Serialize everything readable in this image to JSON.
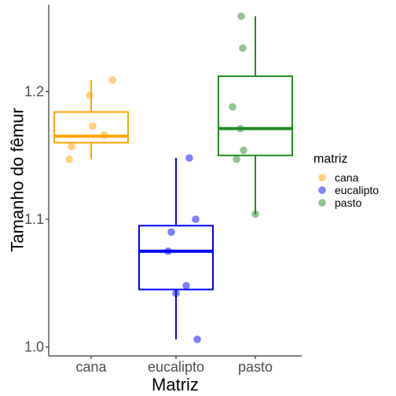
{
  "chart_data": {
    "type": "boxplot",
    "xlabel": "Matriz",
    "ylabel": "Tamanho do fêmur",
    "ylim": [
      0.993,
      1.268
    ],
    "y_ticks": [
      1.0,
      1.1,
      1.2
    ],
    "y_tick_labels": [
      "1.0",
      "1.1",
      "1.2"
    ],
    "categories": [
      "cana",
      "eucalipto",
      "pasto"
    ],
    "grid": false,
    "legend": {
      "title": "matriz",
      "placement": "right",
      "entries": [
        "cana",
        "eucalipto",
        "pasto"
      ]
    },
    "series": [
      {
        "name": "cana",
        "color": "#FFA500",
        "box": {
          "min": 1.147,
          "q1": 1.16,
          "median": 1.165,
          "q3": 1.184,
          "max": 1.209
        },
        "points": [
          {
            "x": -0.28,
            "y": 1.147
          },
          {
            "x": -0.25,
            "y": 1.157
          },
          {
            "x": -0.02,
            "y": 1.197
          },
          {
            "x": 0.02,
            "y": 1.173
          },
          {
            "x": 0.17,
            "y": 1.166
          },
          {
            "x": 0.27,
            "y": 1.209
          }
        ]
      },
      {
        "name": "eucalipto",
        "color": "#0000FF",
        "box": {
          "min": 1.006,
          "q1": 1.045,
          "median": 1.075,
          "q3": 1.095,
          "max": 1.148
        },
        "points": [
          {
            "x": -0.1,
            "y": 1.075
          },
          {
            "x": -0.06,
            "y": 1.09
          },
          {
            "x": 0.0,
            "y": 1.042
          },
          {
            "x": 0.13,
            "y": 1.048
          },
          {
            "x": 0.17,
            "y": 1.148
          },
          {
            "x": 0.25,
            "y": 1.1
          },
          {
            "x": 0.27,
            "y": 1.006
          }
        ]
      },
      {
        "name": "pasto",
        "color": "#228B22",
        "box": {
          "min": 1.104,
          "q1": 1.15,
          "median": 1.171,
          "q3": 1.212,
          "max": 1.259
        },
        "points": [
          {
            "x": -0.29,
            "y": 1.188
          },
          {
            "x": -0.24,
            "y": 1.147
          },
          {
            "x": -0.18,
            "y": 1.259
          },
          {
            "x": -0.19,
            "y": 1.171
          },
          {
            "x": -0.15,
            "y": 1.154
          },
          {
            "x": -0.16,
            "y": 1.234
          },
          {
            "x": 0.0,
            "y": 1.104
          }
        ]
      }
    ]
  }
}
